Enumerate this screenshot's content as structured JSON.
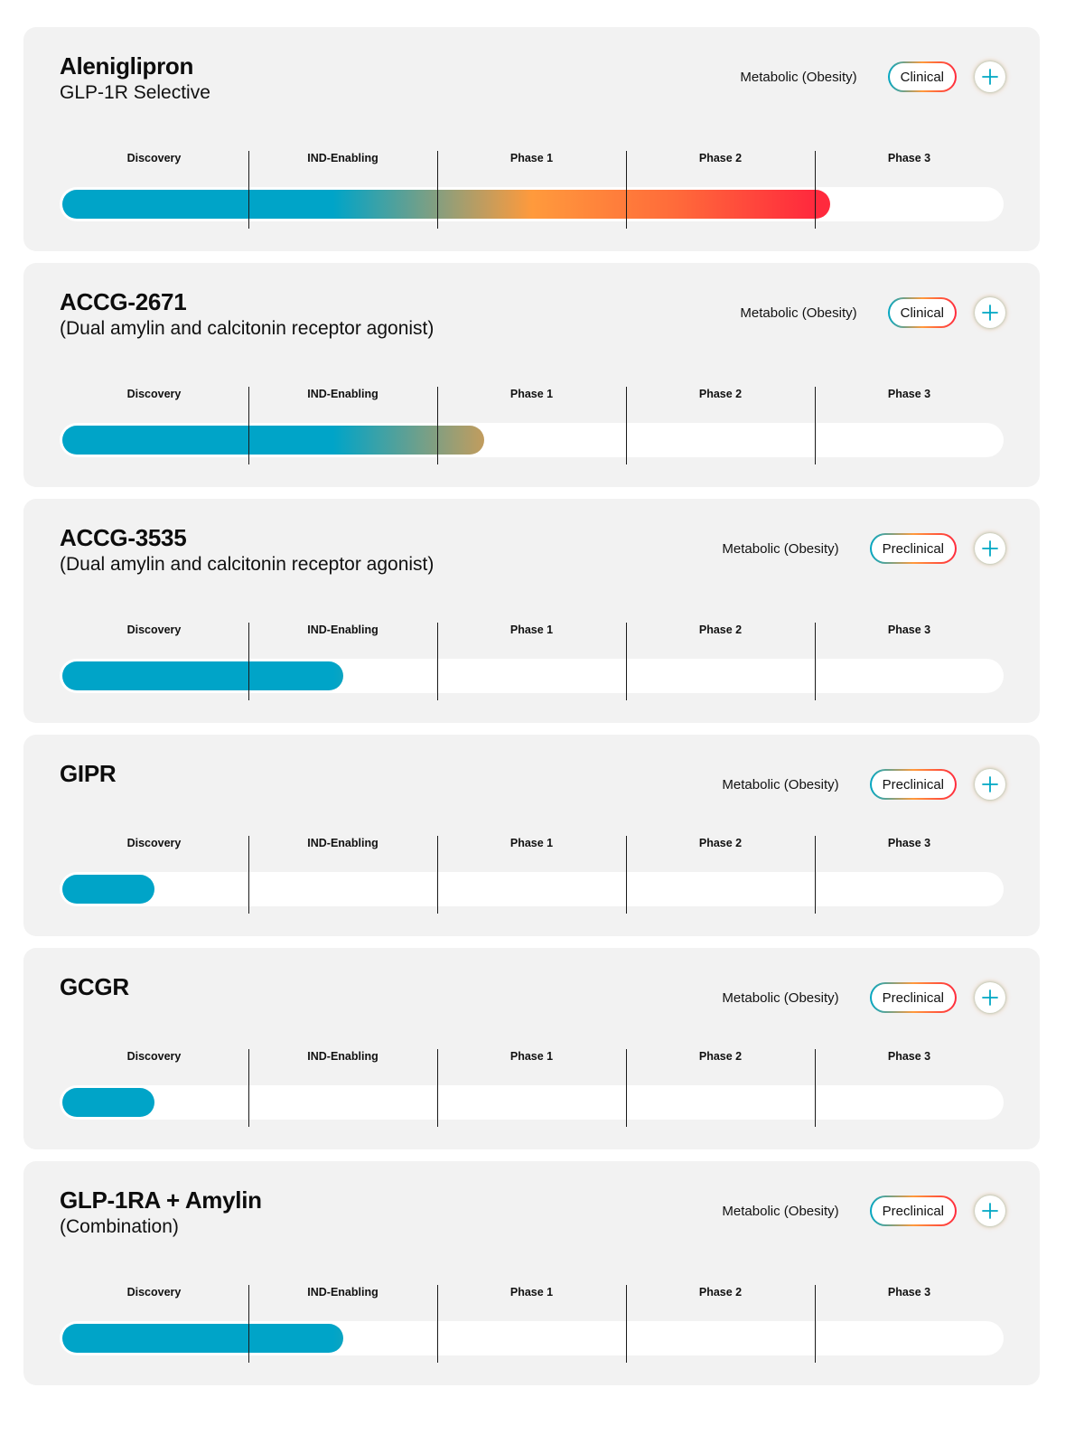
{
  "phases": [
    "Discovery",
    "IND-Enabling",
    "Phase 1",
    "Phase 2",
    "Phase 3"
  ],
  "colors": {
    "teal": "#00a4c8",
    "orange": "#ff9a3c",
    "red": "#ff2a3d",
    "card_bg": "#f2f2f2",
    "track_bg": "#ffffff"
  },
  "expand_icon": "plus-icon",
  "programs": [
    {
      "name": "Aleniglipron",
      "subtitle": "GLP-1R Selective",
      "area": "Metabolic (Obesity)",
      "stage": "Clinical",
      "progress_phases": 4.08
    },
    {
      "name": "ACCG-2671",
      "subtitle": "(Dual amylin and calcitonin receptor agonist)",
      "area": "Metabolic (Obesity)",
      "stage": "Clinical",
      "progress_phases": 2.25
    },
    {
      "name": "ACCG-3535",
      "subtitle": "(Dual amylin and calcitonin receptor agonist)",
      "area": "Metabolic (Obesity)",
      "stage": "Preclinical",
      "progress_phases": 1.5
    },
    {
      "name": "GIPR",
      "subtitle": "",
      "area": "Metabolic (Obesity)",
      "stage": "Preclinical",
      "progress_phases": 0.5
    },
    {
      "name": "GCGR",
      "subtitle": "",
      "area": "Metabolic (Obesity)",
      "stage": "Preclinical",
      "progress_phases": 0.5
    },
    {
      "name": "GLP-1RA + Amylin",
      "subtitle": "(Combination)",
      "area": "Metabolic (Obesity)",
      "stage": "Preclinical",
      "progress_phases": 1.5
    }
  ]
}
